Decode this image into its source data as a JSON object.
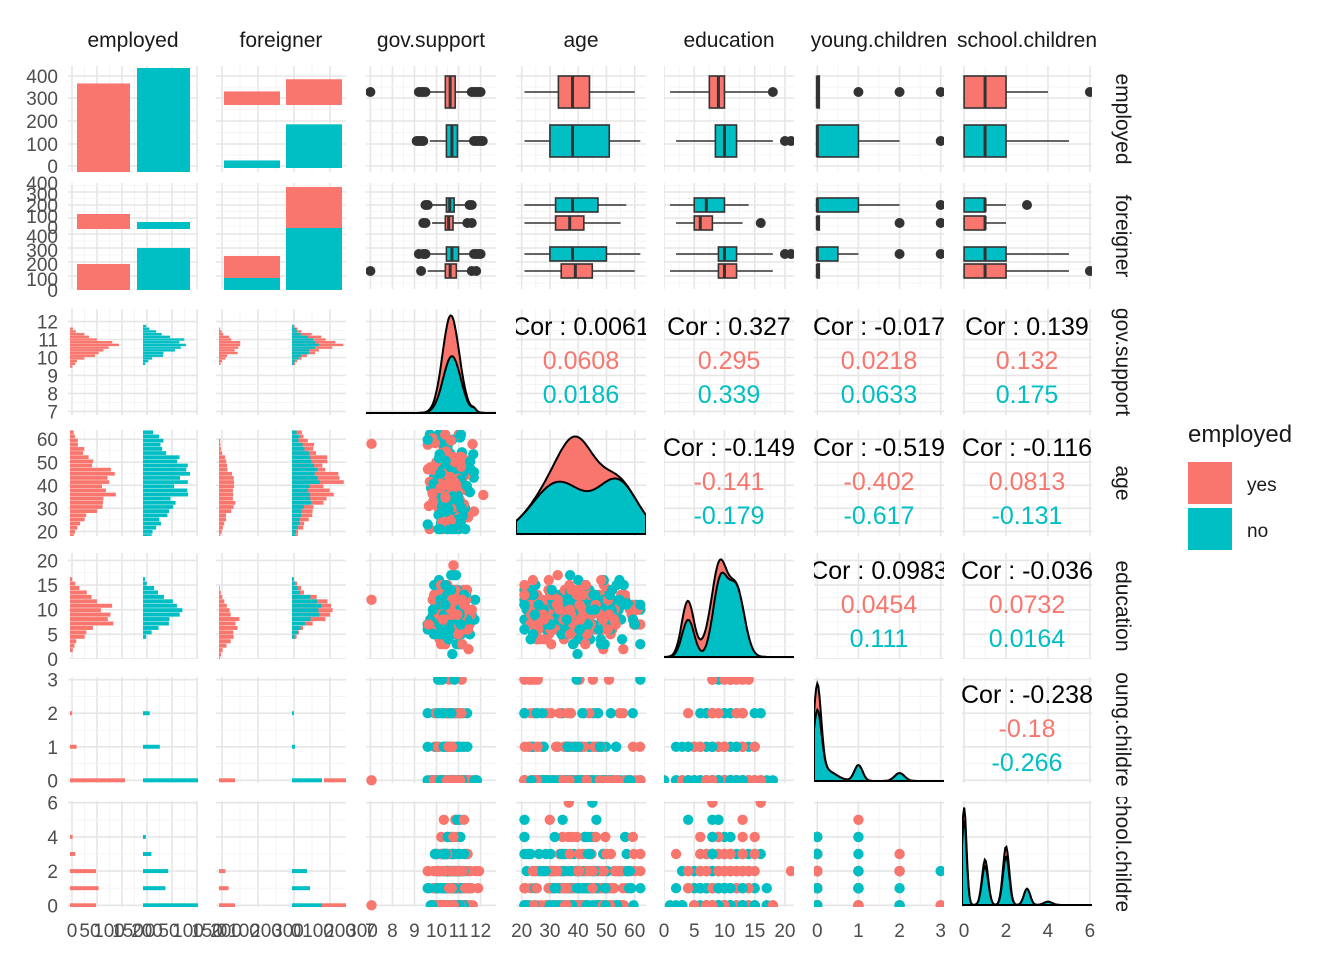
{
  "variables": [
    "employed",
    "foreigner",
    "gov.support",
    "age",
    "education",
    "young.children",
    "school.children"
  ],
  "colors": {
    "yes": "#F8766D",
    "no": "#00BFC4",
    "text": "#1a1a1a",
    "axis": "#4d4d4d"
  },
  "legend": {
    "title": "employed",
    "items": [
      {
        "label": "yes",
        "color": "#F8766D"
      },
      {
        "label": "no",
        "color": "#00BFC4"
      }
    ]
  },
  "chart_data": {
    "type": "scatterplot-matrix",
    "grid": true,
    "legend_position": "right",
    "col_strip_labels": [
      "employed",
      "foreigner",
      "gov.support",
      "age",
      "education",
      "young.children",
      "school.children"
    ],
    "row_strip_labels": [
      "employed",
      "foreigner",
      "gov.support",
      "age",
      "education",
      "young.children",
      "school.children"
    ],
    "x_axes": [
      {
        "range": [
          0,
          500
        ],
        "ticks": [
          "0",
          "50",
          "100",
          "150",
          "200"
        ]
      },
      {
        "range": [
          0,
          300
        ],
        "ticks": [
          "0",
          "100",
          "200",
          "300"
        ]
      },
      {
        "range": [
          6.8,
          12.7
        ],
        "ticks": [
          "7",
          "8",
          "9",
          "10",
          "11",
          "12"
        ]
      },
      {
        "range": [
          18,
          64
        ],
        "ticks": [
          "20",
          "30",
          "40",
          "50",
          "60"
        ]
      },
      {
        "range": [
          0,
          21.5
        ],
        "ticks": [
          "0",
          "5",
          "10",
          "15",
          "20"
        ]
      },
      {
        "range": [
          -0.08,
          3.08
        ],
        "ticks": [
          "0",
          "1",
          "2",
          "3"
        ]
      },
      {
        "range": [
          -0.1,
          6.1
        ],
        "ticks": [
          "0",
          "2",
          "4",
          "6"
        ]
      }
    ],
    "y_axes": [
      {
        "ticks": [
          "0",
          "100",
          "200",
          "300",
          "400"
        ],
        "ticks_lower": []
      },
      {
        "ticks": [
          "0",
          "100",
          "200",
          "300",
          "400"
        ],
        "ticks_lower": [
          "0",
          "100",
          "200",
          "300",
          "400"
        ]
      },
      {
        "range": [
          6.8,
          12.7
        ],
        "ticks": [
          "7",
          "8",
          "9",
          "10",
          "11",
          "12"
        ]
      },
      {
        "range": [
          18,
          64
        ],
        "ticks": [
          "20",
          "30",
          "40",
          "50",
          "60"
        ]
      },
      {
        "range": [
          0,
          21.5
        ],
        "ticks": [
          "0",
          "5",
          "10",
          "15",
          "20"
        ]
      },
      {
        "range": [
          -0.08,
          3.08
        ],
        "ticks": [
          "0",
          "1",
          "2",
          "3"
        ]
      },
      {
        "range": [
          -0.1,
          6.1
        ],
        "ticks": [
          "0",
          "2",
          "4",
          "6"
        ]
      }
    ],
    "employed_counts": {
      "yes": 401,
      "no": 471
    },
    "foreigner_by_employed": {
      "yes": {
        "foreigner_no": 130,
        "foreigner_yes": 271
      },
      "no": {
        "foreigner_no": 53,
        "foreigner_yes": 418
      }
    },
    "correlations": [
      {
        "row": 2,
        "col": 3,
        "overall": "Cor : 0.0061",
        "yes": "0.0608",
        "no": "0.0186"
      },
      {
        "row": 2,
        "col": 4,
        "overall": "Cor : 0.327",
        "yes": "0.295",
        "no": "0.339"
      },
      {
        "row": 2,
        "col": 5,
        "overall": "Cor : -0.017",
        "yes": "0.0218",
        "no": "0.0633"
      },
      {
        "row": 2,
        "col": 6,
        "overall": "Cor : 0.139",
        "yes": "0.132",
        "no": "0.175"
      },
      {
        "row": 3,
        "col": 4,
        "overall": "Cor : -0.149",
        "yes": "-0.141",
        "no": "-0.179"
      },
      {
        "row": 3,
        "col": 5,
        "overall": "Cor : -0.519",
        "yes": "-0.402",
        "no": "-0.617"
      },
      {
        "row": 3,
        "col": 6,
        "overall": "Cor : -0.116",
        "yes": "0.0813",
        "no": "-0.131"
      },
      {
        "row": 4,
        "col": 5,
        "overall": "Cor : 0.0983",
        "yes": "0.0454",
        "no": "0.111"
      },
      {
        "row": 4,
        "col": 6,
        "overall": "Cor : -0.036",
        "yes": "0.0732",
        "no": "0.0164"
      },
      {
        "row": 5,
        "col": 6,
        "overall": "Cor : -0.238",
        "yes": "-0.18",
        "no": "-0.266"
      }
    ],
    "boxplots_by_employed": {
      "gov.support": {
        "yes": [
          9.6,
          10.4,
          10.62,
          10.85,
          11.5
        ],
        "no": [
          9.7,
          10.45,
          10.7,
          10.95,
          11.55
        ]
      },
      "age": {
        "yes": [
          21,
          33,
          38,
          44,
          60
        ],
        "no": [
          21,
          30,
          38,
          51,
          62
        ]
      },
      "education": {
        "yes": [
          1,
          7.5,
          9,
          10,
          18
        ],
        "no": [
          2,
          8.5,
          10,
          12,
          18
        ]
      },
      "young.children": {
        "yes": [
          0,
          0,
          0,
          0,
          0
        ],
        "no": [
          0,
          0,
          0,
          1,
          2
        ]
      },
      "school.children": {
        "yes": [
          0,
          0,
          1,
          2,
          4
        ],
        "no": [
          0,
          0,
          1,
          2,
          5
        ]
      }
    },
    "boxplots_by_foreigner": {
      "gov.support": {
        "no_no": [
          9.8,
          10.45,
          10.6,
          10.8,
          11.4
        ],
        "no_yes": [
          9.8,
          10.4,
          10.55,
          10.75,
          11.3
        ],
        "yes_no": [
          9.7,
          10.45,
          10.7,
          11.0,
          11.6
        ],
        "yes_yes": [
          9.6,
          10.4,
          10.62,
          10.9,
          11.5
        ]
      },
      "age": {
        "no_no": [
          21,
          32,
          38,
          47,
          57
        ],
        "no_yes": [
          21,
          32,
          37,
          42,
          55
        ],
        "yes_no": [
          21,
          30,
          38,
          50,
          62
        ],
        "yes_yes": [
          21,
          34,
          39,
          45,
          60
        ]
      },
      "education": {
        "no_no": [
          1,
          5,
          7,
          10,
          14
        ],
        "no_yes": [
          2,
          5,
          6,
          8,
          13
        ],
        "yes_no": [
          2,
          9,
          10,
          12,
          18
        ],
        "yes_yes": [
          1,
          9,
          10,
          12,
          18
        ]
      },
      "young.children": {
        "no_no": [
          0,
          0,
          0,
          1,
          2
        ],
        "no_yes": [
          0,
          0,
          0,
          0,
          0
        ],
        "yes_no": [
          0,
          0,
          0,
          0.5,
          1
        ],
        "yes_yes": [
          0,
          0,
          0,
          0,
          0
        ]
      },
      "school.children": {
        "no_no": [
          0,
          0,
          1,
          1,
          2
        ],
        "no_yes": [
          0,
          0,
          1,
          1,
          2
        ],
        "yes_no": [
          0,
          0,
          1,
          2,
          5
        ],
        "yes_yes": [
          0,
          0,
          1,
          2,
          5
        ]
      }
    },
    "density_note": "diagonal densities for gov.support, age, education, young.children, school.children are stacked by employed",
    "discrete_levels": {
      "young.children": [
        0,
        1,
        2,
        3
      ],
      "school.children": [
        0,
        1,
        2,
        3,
        4,
        5,
        6
      ]
    }
  }
}
